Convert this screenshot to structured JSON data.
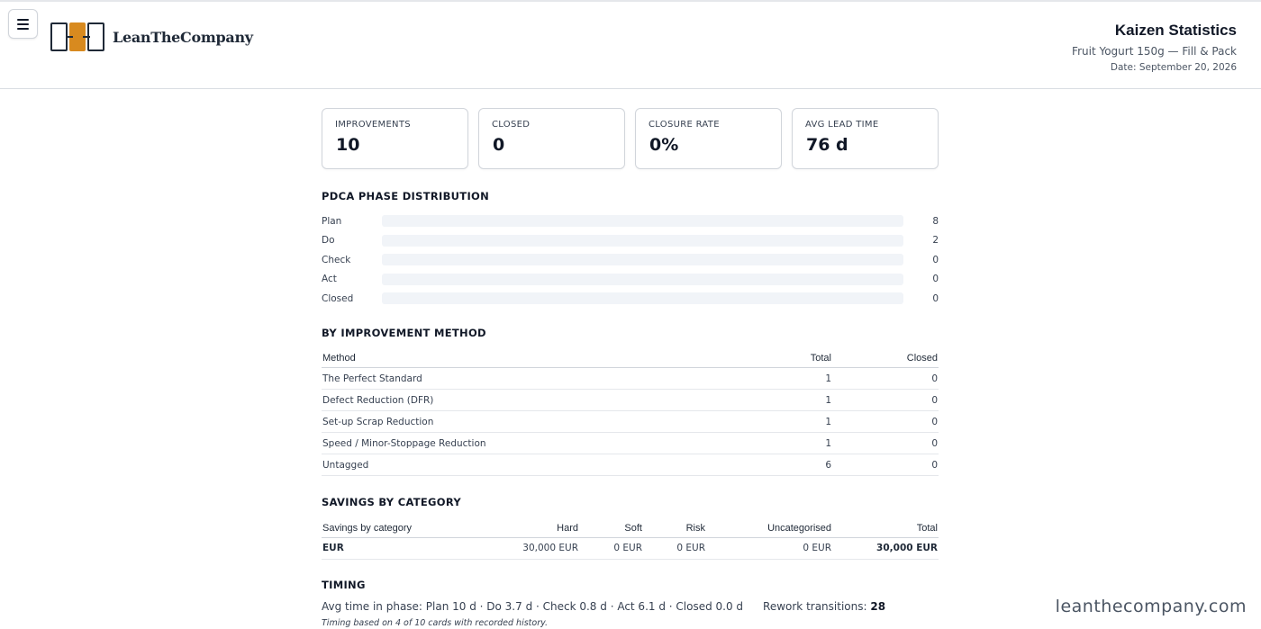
{
  "brand": {
    "name": "LeanTheCompany",
    "watermark": "leanthecompany.com"
  },
  "header": {
    "title": "Kaizen Statistics",
    "subtitle": "Fruit Yogurt 150g — Fill & Pack",
    "date": "Date: September 20, 2026"
  },
  "kpis": [
    {
      "label": "IMPROVEMENTS",
      "value": "10"
    },
    {
      "label": "CLOSED",
      "value": "0"
    },
    {
      "label": "CLOSURE RATE",
      "value": "0%"
    },
    {
      "label": "AVG LEAD TIME",
      "value": "76 d"
    }
  ],
  "pdca": {
    "title": "PDCA PHASE DISTRIBUTION",
    "max": 8,
    "colors": {
      "fill": "#0d8fae",
      "track": "#f1f4f8"
    },
    "rows": [
      {
        "label": "Plan",
        "value": 8
      },
      {
        "label": "Do",
        "value": 2
      },
      {
        "label": "Check",
        "value": 0
      },
      {
        "label": "Act",
        "value": 0
      },
      {
        "label": "Closed",
        "value": 0
      }
    ]
  },
  "method": {
    "title": "BY IMPROVEMENT METHOD",
    "headers": [
      "Method",
      "Total",
      "Closed"
    ],
    "rows": [
      [
        "The Perfect Standard",
        "1",
        "0"
      ],
      [
        "Defect Reduction (DFR)",
        "1",
        "0"
      ],
      [
        "Set-up Scrap Reduction",
        "1",
        "0"
      ],
      [
        "Speed / Minor-Stoppage Reduction",
        "1",
        "0"
      ],
      [
        "Untagged",
        "6",
        "0"
      ]
    ]
  },
  "savings": {
    "title": "SAVINGS BY CATEGORY",
    "headers": [
      "Savings by category",
      "Hard",
      "Soft",
      "Risk",
      "Uncategorised",
      "Total"
    ],
    "rows": [
      [
        "EUR",
        "30,000 EUR",
        "0 EUR",
        "0 EUR",
        "0 EUR",
        "30,000 EUR"
      ]
    ]
  },
  "timing": {
    "title": "TIMING",
    "avg": "Avg time in phase: Plan 10 d · Do 3.7 d · Check 0.8 d · Act 6.1 d · Closed 0.0 d",
    "rework_label": "Rework transitions:",
    "rework_value": "28",
    "note": "Timing based on 4 of 10 cards with recorded history."
  }
}
